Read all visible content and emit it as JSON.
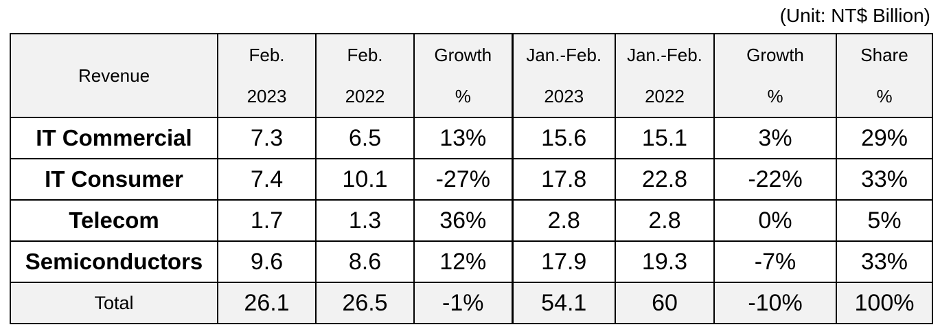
{
  "unit_note": "(Unit: NT$ Billion)",
  "table": {
    "header": {
      "row_label": "Revenue",
      "columns": [
        {
          "line1": "Feb.",
          "line2": "2023"
        },
        {
          "line1": "Feb.",
          "line2": "2022"
        },
        {
          "line1": "Growth",
          "line2": "%"
        },
        {
          "line1": "Jan.-Feb.",
          "line2": "2023"
        },
        {
          "line1": "Jan.-Feb.",
          "line2": "2022"
        },
        {
          "line1": "Growth",
          "line2": "%"
        },
        {
          "line1": "Share",
          "line2": "%"
        }
      ]
    },
    "rows": [
      {
        "label": "IT Commercial",
        "values": [
          "7.3",
          "6.5",
          "13%",
          "15.6",
          "15.1",
          "3%",
          "29%"
        ]
      },
      {
        "label": "IT Consumer",
        "values": [
          "7.4",
          "10.1",
          "-27%",
          "17.8",
          "22.8",
          "-22%",
          "33%"
        ]
      },
      {
        "label": "Telecom",
        "values": [
          "1.7",
          "1.3",
          "36%",
          "2.8",
          "2.8",
          "0%",
          "5%"
        ]
      },
      {
        "label": "Semiconductors",
        "values": [
          "9.6",
          "8.6",
          "12%",
          "17.9",
          "19.3",
          "-7%",
          "33%"
        ]
      },
      {
        "label": "Total",
        "values": [
          "26.1",
          "26.5",
          "-1%",
          "54.1",
          "60",
          "-10%",
          "100%"
        ]
      }
    ]
  },
  "colors": {
    "header_bg": "#f2f2f2",
    "total_bg": "#f2f2f2",
    "border": "#000000"
  }
}
